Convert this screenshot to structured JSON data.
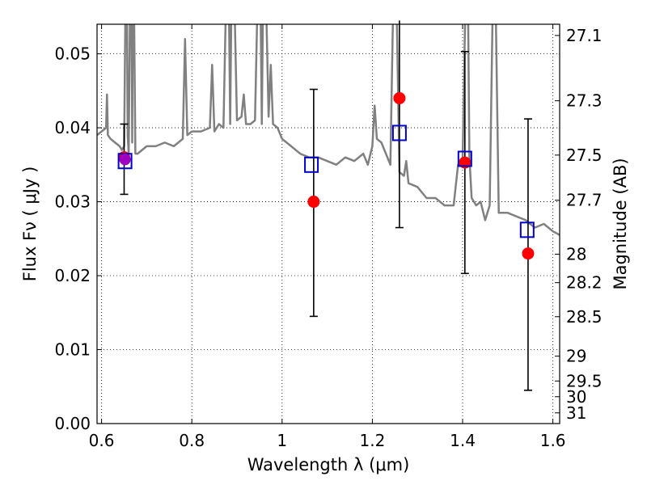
{
  "chart_data": {
    "type": "scatter",
    "xlabel": "Wavelength  λ (μm)",
    "ylabel": "Flux  Fν  ( μJy )",
    "y2label": "Magnitude (AB)",
    "xlim": [
      0.59,
      1.615
    ],
    "ylim": [
      0.0,
      0.054
    ],
    "grid": true,
    "x_ticks": [
      0.6,
      0.8,
      1.0,
      1.2,
      1.4,
      1.6
    ],
    "x_tick_labels": [
      "0.6",
      "0.8",
      "1",
      "1.2",
      "1.4",
      "1.6"
    ],
    "y_ticks": [
      0.0,
      0.01,
      0.02,
      0.03,
      0.04,
      0.05
    ],
    "y_tick_labels": [
      "0.00",
      "0.01",
      "0.02",
      "0.03",
      "0.04",
      "0.05"
    ],
    "y2_tick_labels": [
      "27.1",
      "27.3",
      "27.5",
      "27.7",
      "28",
      "28.2",
      "28.5",
      "29",
      "29.5",
      "30",
      "31"
    ],
    "series": [
      {
        "kind": "line",
        "color": "#808080",
        "x": [
          0.59,
          0.6,
          0.61,
          0.612,
          0.614,
          0.62,
          0.63,
          0.64,
          0.645,
          0.65,
          0.655,
          0.658,
          0.66,
          0.665,
          0.668,
          0.67,
          0.675,
          0.68,
          0.69,
          0.7,
          0.72,
          0.74,
          0.76,
          0.78,
          0.785,
          0.79,
          0.8,
          0.82,
          0.84,
          0.845,
          0.85,
          0.86,
          0.87,
          0.88,
          0.885,
          0.89,
          0.9,
          0.91,
          0.915,
          0.92,
          0.93,
          0.94,
          0.95,
          0.955,
          0.96,
          0.97,
          0.975,
          0.98,
          0.99,
          1.0,
          1.02,
          1.04,
          1.06,
          1.08,
          1.1,
          1.12,
          1.14,
          1.16,
          1.18,
          1.19,
          1.2,
          1.205,
          1.21,
          1.22,
          1.24,
          1.25,
          1.26,
          1.27,
          1.275,
          1.28,
          1.3,
          1.32,
          1.34,
          1.36,
          1.38,
          1.39,
          1.4,
          1.41,
          1.415,
          1.42,
          1.43,
          1.44,
          1.45,
          1.46,
          1.47,
          1.48,
          1.5,
          1.52,
          1.54,
          1.56,
          1.58,
          1.6,
          1.615
        ],
        "y": [
          0.039,
          0.0395,
          0.04,
          0.0445,
          0.039,
          0.0385,
          0.038,
          0.0375,
          0.037,
          0.0375,
          0.07,
          0.039,
          0.0365,
          0.07,
          0.038,
          0.07,
          0.0365,
          0.0365,
          0.037,
          0.0375,
          0.0375,
          0.038,
          0.0375,
          0.0385,
          0.052,
          0.039,
          0.0395,
          0.0395,
          0.04,
          0.0485,
          0.0395,
          0.0405,
          0.04,
          0.07,
          0.0405,
          0.07,
          0.041,
          0.0415,
          0.0445,
          0.0405,
          0.0405,
          0.041,
          0.07,
          0.0405,
          0.07,
          0.0415,
          0.0485,
          0.0405,
          0.04,
          0.0385,
          0.0375,
          0.0365,
          0.036,
          0.036,
          0.0355,
          0.035,
          0.036,
          0.0355,
          0.0365,
          0.035,
          0.0375,
          0.043,
          0.0385,
          0.038,
          0.035,
          0.07,
          0.034,
          0.0335,
          0.0355,
          0.0325,
          0.032,
          0.0305,
          0.0305,
          0.0295,
          0.0295,
          0.035,
          0.0355,
          0.07,
          0.036,
          0.0305,
          0.0295,
          0.03,
          0.0275,
          0.0295,
          0.07,
          0.0285,
          0.0285,
          0.028,
          0.0275,
          0.0265,
          0.027,
          0.026,
          0.0255
        ]
      },
      {
        "kind": "errorbar",
        "color": "#000000",
        "x": [
          0.65,
          1.07,
          1.26,
          1.405,
          1.545
        ],
        "y": [
          0.036,
          0.03,
          0.044,
          0.0353,
          0.023
        ],
        "yerr_low": [
          0.031,
          0.0145,
          0.0265,
          0.0203,
          0.0045
        ],
        "yerr_high": [
          0.0405,
          0.0452,
          0.0545,
          0.0503,
          0.0412
        ]
      },
      {
        "kind": "marker-circle",
        "color": "#ff0000",
        "x": [
          0.65,
          1.07,
          1.26,
          1.405,
          1.545
        ],
        "y": [
          0.036,
          0.03,
          0.044,
          0.0353,
          0.023
        ]
      },
      {
        "kind": "marker-square",
        "color": "#0000cc",
        "x": [
          0.652,
          1.065,
          1.26,
          1.405,
          1.543
        ],
        "y": [
          0.0355,
          0.035,
          0.0393,
          0.0358,
          0.0262
        ]
      }
    ],
    "highlight": {
      "color": "#a000c0",
      "x": 0.652,
      "y": 0.0357
    }
  }
}
